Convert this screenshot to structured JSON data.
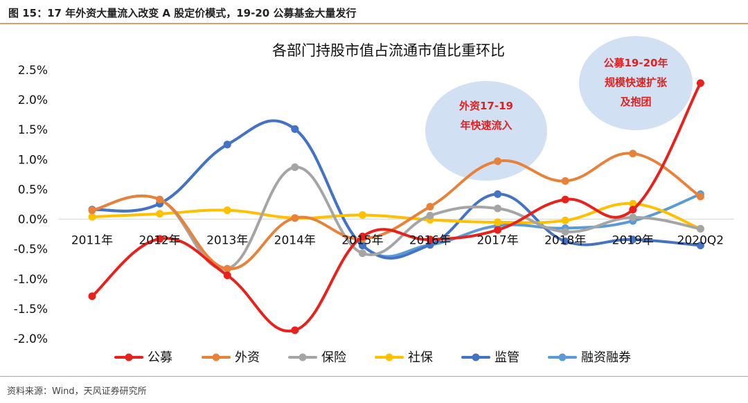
{
  "page": {
    "header_title": "图 15：17 年外资大量流入改变 A 股定价模式，19-20 公募基金大量发行",
    "source": "资料来源：Wind，天风证券研究所"
  },
  "chart_data": {
    "type": "line",
    "smooth": true,
    "title": "各部门持股市值占流通市值比重环比",
    "categories": [
      "2011年",
      "2012年",
      "2013年",
      "2014年",
      "2015年",
      "2016年",
      "2017年",
      "2018年",
      "2019年",
      "2020Q2"
    ],
    "y_ticks": [
      "2.5%",
      "2.0%",
      "1.5%",
      "1.0%",
      "0.5%",
      "0.0%",
      "-0.5%",
      "-1.0%",
      "-1.5%",
      "-2.0%"
    ],
    "ylim": [
      -2.0,
      2.5
    ],
    "series": [
      {
        "name": "公募",
        "color": "#e8211c",
        "values": [
          -1.29,
          -0.33,
          -0.94,
          -1.86,
          -0.29,
          -0.34,
          -0.18,
          0.33,
          0.16,
          2.28
        ]
      },
      {
        "name": "外资",
        "color": "#e8823a",
        "values": [
          0.15,
          0.33,
          -0.83,
          0.02,
          -0.33,
          0.21,
          0.97,
          0.64,
          1.1,
          0.38
        ]
      },
      {
        "name": "保险",
        "color": "#a5a5a5",
        "values": [
          0.15,
          0.33,
          -0.83,
          0.87,
          -0.57,
          0.06,
          0.18,
          -0.21,
          0.03,
          -0.16
        ]
      },
      {
        "name": "社保",
        "color": "#ffc000",
        "values": [
          0.04,
          0.09,
          0.15,
          0.02,
          0.07,
          -0.01,
          -0.05,
          -0.02,
          0.26,
          -0.16
        ]
      },
      {
        "name": "监管",
        "color": "#4472c4",
        "values": [
          0.16,
          0.26,
          1.25,
          1.51,
          -0.44,
          -0.43,
          0.42,
          -0.37,
          -0.34,
          -0.44
        ]
      },
      {
        "name": "融资融券",
        "color": "#5b9bd5",
        "values": [
          0.16,
          0.26,
          1.25,
          1.51,
          -0.44,
          -0.43,
          -0.11,
          -0.15,
          -0.03,
          0.42
        ]
      }
    ],
    "annotations": [
      {
        "lines": [
          "外资17-19",
          "年快速流入"
        ]
      },
      {
        "lines": [
          "公募19-20年",
          "规模快速扩张",
          "及抱团"
        ]
      }
    ],
    "legend_position": "bottom",
    "grid": false
  }
}
